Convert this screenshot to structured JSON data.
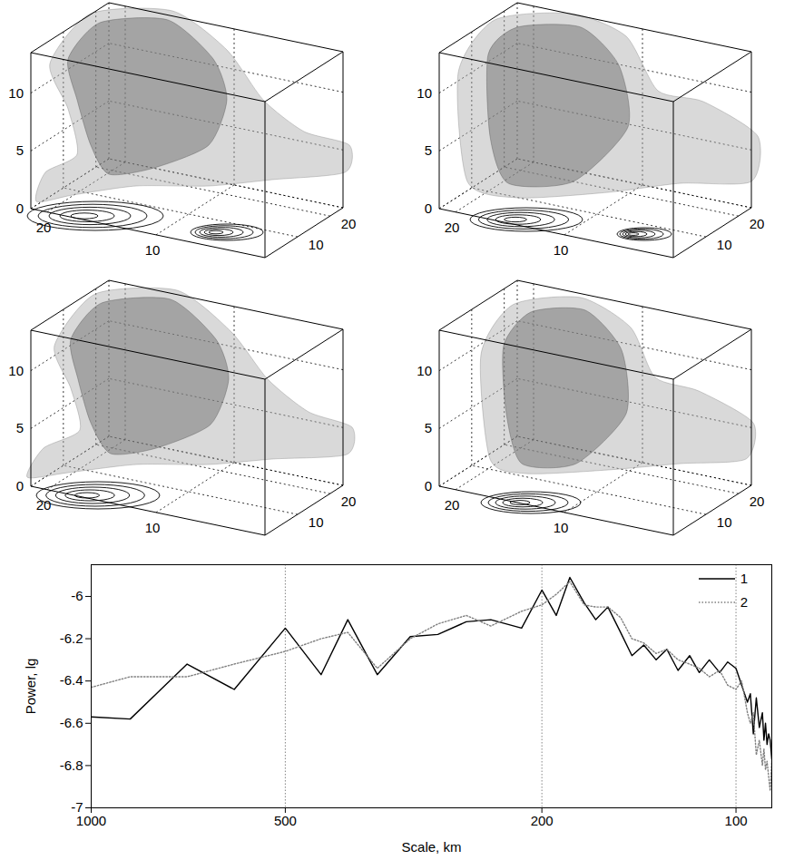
{
  "chart_data": [
    {
      "type": "isosurface_3d",
      "xlim": [
        0,
        21.5
      ],
      "ylim": [
        0,
        24
      ],
      "zlim": [
        0,
        13.5
      ],
      "xticks": [
        10,
        20
      ],
      "yticks": [
        10,
        20
      ],
      "zticks": [
        0,
        5,
        10
      ]
    },
    {
      "type": "isosurface_3d",
      "xlim": [
        0,
        21.5
      ],
      "ylim": [
        0,
        24
      ],
      "zlim": [
        0,
        13.5
      ],
      "xticks": [
        10,
        20
      ],
      "yticks": [
        10,
        20
      ],
      "zticks": [
        0,
        5,
        10
      ]
    },
    {
      "type": "isosurface_3d",
      "xlim": [
        0,
        21.5
      ],
      "ylim": [
        0,
        24
      ],
      "zlim": [
        0,
        13.5
      ],
      "xticks": [
        10,
        20
      ],
      "yticks": [
        10,
        20
      ],
      "zticks": [
        0,
        5,
        10
      ]
    },
    {
      "type": "isosurface_3d",
      "xlim": [
        0,
        21.5
      ],
      "ylim": [
        0,
        24
      ],
      "zlim": [
        0,
        13.5
      ],
      "xticks": [
        10,
        20
      ],
      "yticks": [
        10,
        20
      ],
      "zticks": [
        0,
        5,
        10
      ]
    },
    {
      "type": "line",
      "xlabel": "Scale, km",
      "ylabel": "Power, lg",
      "log": "x",
      "grid": "x",
      "legend": "upper right",
      "xlim": [
        1000,
        88
      ],
      "ylim": [
        -7,
        -5.85
      ],
      "xticks": [
        1000,
        500,
        200,
        100
      ],
      "yticks": [
        -7,
        -6.8,
        -6.6,
        -6.4,
        -6.2,
        -6
      ],
      "x": [
        1000,
        870,
        710,
        600,
        500,
        440,
        400,
        360,
        320,
        290,
        262,
        240,
        215,
        200,
        190,
        181,
        172,
        165,
        158,
        151,
        145,
        139,
        133,
        128,
        123,
        118,
        114,
        110,
        106,
        103,
        100,
        98,
        96,
        95,
        94,
        93,
        92,
        91,
        90.5,
        90,
        89.5,
        89,
        88.5,
        88
      ],
      "series": [
        {
          "name": "1",
          "color": "#000000",
          "line_style": "solid",
          "values": [
            -6.57,
            -6.58,
            -6.32,
            -6.44,
            -6.15,
            -6.37,
            -6.11,
            -6.37,
            -6.19,
            -6.18,
            -6.12,
            -6.11,
            -6.15,
            -5.97,
            -6.09,
            -5.91,
            -6.03,
            -6.11,
            -6.05,
            -6.17,
            -6.28,
            -6.23,
            -6.3,
            -6.25,
            -6.35,
            -6.28,
            -6.36,
            -6.3,
            -6.36,
            -6.31,
            -6.34,
            -6.42,
            -6.5,
            -6.46,
            -6.65,
            -6.48,
            -6.62,
            -6.55,
            -6.68,
            -6.6,
            -6.7,
            -6.65,
            -6.68,
            -6.77
          ]
        },
        {
          "name": "2",
          "color": "#808080",
          "line_style": "dotted",
          "values": [
            -6.43,
            -6.38,
            -6.38,
            -6.32,
            -6.26,
            -6.2,
            -6.17,
            -6.34,
            -6.2,
            -6.13,
            -6.09,
            -6.14,
            -6.07,
            -6.04,
            -5.99,
            -5.93,
            -6.04,
            -6.05,
            -6.05,
            -6.1,
            -6.2,
            -6.22,
            -6.27,
            -6.25,
            -6.3,
            -6.32,
            -6.34,
            -6.38,
            -6.35,
            -6.42,
            -6.44,
            -6.4,
            -6.55,
            -6.6,
            -6.55,
            -6.75,
            -6.68,
            -6.8,
            -6.72,
            -6.82,
            -6.78,
            -6.85,
            -6.92,
            -6.78
          ]
        }
      ]
    }
  ]
}
